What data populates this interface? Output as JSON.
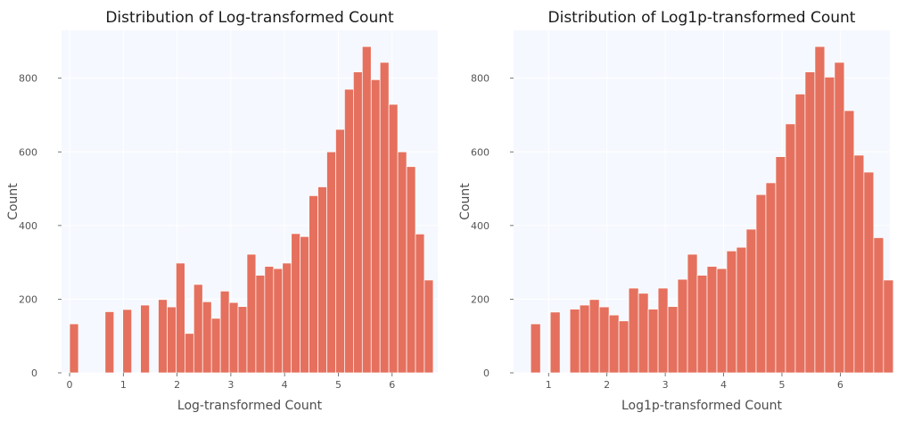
{
  "chart_data": [
    {
      "type": "bar",
      "title": "Distribution of Log-transformed Count",
      "xlabel": "Log-transformed Count",
      "ylabel": "Count",
      "xlim": [
        -0.15,
        6.85
      ],
      "ylim": [
        0,
        930
      ],
      "xticks": [
        0,
        1,
        2,
        3,
        4,
        5,
        6
      ],
      "yticks": [
        0,
        200,
        400,
        600,
        800
      ],
      "grid": true,
      "bin_width": 0.165,
      "bins": [
        {
          "x0": 0.0,
          "x1": 0.165,
          "count": 133
        },
        {
          "x0": 0.66,
          "x1": 0.825,
          "count": 166
        },
        {
          "x0": 0.99,
          "x1": 1.155,
          "count": 172
        },
        {
          "x0": 1.32,
          "x1": 1.485,
          "count": 184
        },
        {
          "x0": 1.65,
          "x1": 1.815,
          "count": 199
        },
        {
          "x0": 1.815,
          "x1": 1.98,
          "count": 179
        },
        {
          "x0": 1.98,
          "x1": 2.145,
          "count": 298
        },
        {
          "x0": 2.145,
          "x1": 2.31,
          "count": 107
        },
        {
          "x0": 2.31,
          "x1": 2.475,
          "count": 240
        },
        {
          "x0": 2.475,
          "x1": 2.64,
          "count": 193
        },
        {
          "x0": 2.64,
          "x1": 2.805,
          "count": 148
        },
        {
          "x0": 2.805,
          "x1": 2.97,
          "count": 222
        },
        {
          "x0": 2.97,
          "x1": 3.135,
          "count": 191
        },
        {
          "x0": 3.135,
          "x1": 3.3,
          "count": 180
        },
        {
          "x0": 3.3,
          "x1": 3.465,
          "count": 322
        },
        {
          "x0": 3.465,
          "x1": 3.63,
          "count": 265
        },
        {
          "x0": 3.63,
          "x1": 3.795,
          "count": 289
        },
        {
          "x0": 3.795,
          "x1": 3.96,
          "count": 283
        },
        {
          "x0": 3.96,
          "x1": 4.125,
          "count": 298
        },
        {
          "x0": 4.125,
          "x1": 4.29,
          "count": 378
        },
        {
          "x0": 4.29,
          "x1": 4.455,
          "count": 370
        },
        {
          "x0": 4.455,
          "x1": 4.62,
          "count": 481
        },
        {
          "x0": 4.62,
          "x1": 4.785,
          "count": 505
        },
        {
          "x0": 4.785,
          "x1": 4.95,
          "count": 600
        },
        {
          "x0": 4.95,
          "x1": 5.115,
          "count": 661
        },
        {
          "x0": 5.115,
          "x1": 5.28,
          "count": 770
        },
        {
          "x0": 5.28,
          "x1": 5.445,
          "count": 817
        },
        {
          "x0": 5.445,
          "x1": 5.61,
          "count": 886
        },
        {
          "x0": 5.61,
          "x1": 5.775,
          "count": 796
        },
        {
          "x0": 5.775,
          "x1": 5.94,
          "count": 843
        },
        {
          "x0": 5.94,
          "x1": 6.105,
          "count": 729
        },
        {
          "x0": 6.105,
          "x1": 6.27,
          "count": 600
        },
        {
          "x0": 6.27,
          "x1": 6.435,
          "count": 560
        },
        {
          "x0": 6.435,
          "x1": 6.6,
          "count": 377
        },
        {
          "x0": 6.6,
          "x1": 6.765,
          "count": 252
        }
      ]
    },
    {
      "type": "bar",
      "title": "Distribution of Log1p-transformed Count",
      "xlabel": "Log1p-transformed Count",
      "ylabel": "Count",
      "xlim": [
        0.4,
        6.85
      ],
      "ylim": [
        0,
        930
      ],
      "xticks": [
        1,
        2,
        3,
        4,
        5,
        6
      ],
      "yticks": [
        0,
        200,
        400,
        600,
        800
      ],
      "grid": true,
      "bin_width": 0.168,
      "bins": [
        {
          "x0": 0.693,
          "x1": 0.861,
          "count": 133
        },
        {
          "x0": 1.029,
          "x1": 1.197,
          "count": 165
        },
        {
          "x0": 1.365,
          "x1": 1.533,
          "count": 173
        },
        {
          "x0": 1.533,
          "x1": 1.701,
          "count": 184
        },
        {
          "x0": 1.701,
          "x1": 1.869,
          "count": 199
        },
        {
          "x0": 1.869,
          "x1": 2.037,
          "count": 179
        },
        {
          "x0": 2.037,
          "x1": 2.205,
          "count": 157
        },
        {
          "x0": 2.205,
          "x1": 2.373,
          "count": 141
        },
        {
          "x0": 2.373,
          "x1": 2.541,
          "count": 230
        },
        {
          "x0": 2.541,
          "x1": 2.709,
          "count": 216
        },
        {
          "x0": 2.709,
          "x1": 2.877,
          "count": 173
        },
        {
          "x0": 2.877,
          "x1": 3.045,
          "count": 230
        },
        {
          "x0": 3.045,
          "x1": 3.213,
          "count": 180
        },
        {
          "x0": 3.213,
          "x1": 3.381,
          "count": 254
        },
        {
          "x0": 3.381,
          "x1": 3.549,
          "count": 322
        },
        {
          "x0": 3.549,
          "x1": 3.717,
          "count": 265
        },
        {
          "x0": 3.717,
          "x1": 3.885,
          "count": 289
        },
        {
          "x0": 3.885,
          "x1": 4.053,
          "count": 283
        },
        {
          "x0": 4.053,
          "x1": 4.221,
          "count": 331
        },
        {
          "x0": 4.221,
          "x1": 4.389,
          "count": 341
        },
        {
          "x0": 4.389,
          "x1": 4.557,
          "count": 390
        },
        {
          "x0": 4.557,
          "x1": 4.725,
          "count": 484
        },
        {
          "x0": 4.725,
          "x1": 4.893,
          "count": 516
        },
        {
          "x0": 4.893,
          "x1": 5.061,
          "count": 587
        },
        {
          "x0": 5.061,
          "x1": 5.229,
          "count": 676
        },
        {
          "x0": 5.229,
          "x1": 5.397,
          "count": 757
        },
        {
          "x0": 5.397,
          "x1": 5.565,
          "count": 817
        },
        {
          "x0": 5.565,
          "x1": 5.733,
          "count": 886
        },
        {
          "x0": 5.733,
          "x1": 5.901,
          "count": 803
        },
        {
          "x0": 5.901,
          "x1": 6.069,
          "count": 843
        },
        {
          "x0": 6.069,
          "x1": 6.237,
          "count": 712
        },
        {
          "x0": 6.237,
          "x1": 6.405,
          "count": 591
        },
        {
          "x0": 6.405,
          "x1": 6.573,
          "count": 545
        },
        {
          "x0": 6.573,
          "x1": 6.741,
          "count": 367
        },
        {
          "x0": 6.741,
          "x1": 6.909,
          "count": 252
        }
      ]
    }
  ],
  "colors": {
    "bar": "#e5705e",
    "plot_background": "#f5f8fe"
  }
}
